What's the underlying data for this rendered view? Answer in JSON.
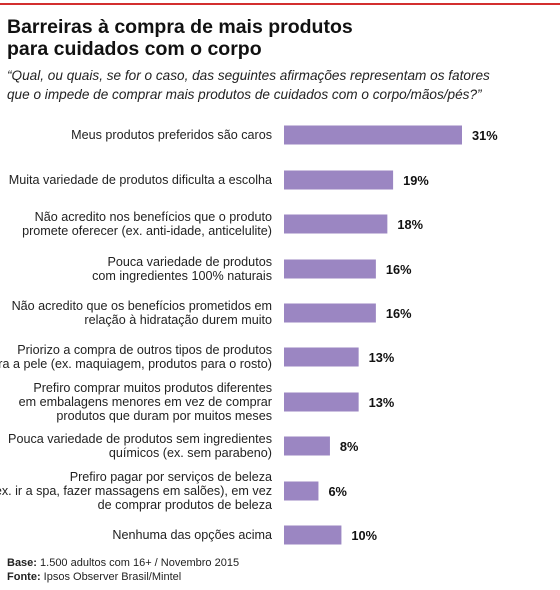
{
  "title_lines": [
    "Barreiras à compra de mais produtos",
    "para cuidados com o corpo"
  ],
  "subtitle_lines": [
    "“Qual, ou quais, se for o caso, das seguintes afirmações representam os fatores",
    "que o impede de comprar mais produtos de cuidados com o corpo/mãos/pés?”"
  ],
  "bar_color": "#9b86c2",
  "accent_color": "#d32f2f",
  "chart_data": {
    "type": "bar",
    "orientation": "horizontal",
    "unit": "%",
    "xlim": [
      0,
      31
    ],
    "categories": [
      [
        "Meus produtos preferidos são caros"
      ],
      [
        "Muita variedade de produtos dificulta a escolha"
      ],
      [
        "Não acredito nos benefícios que o produto",
        "promete oferecer (ex. anti-idade, anticelulite)"
      ],
      [
        "Pouca variedade de produtos",
        "com ingredientes 100% naturais"
      ],
      [
        "Não acredito que os benefícios prometidos em",
        "relação à hidratação durem muito"
      ],
      [
        "Priorizo a compra de outros tipos de produtos",
        "para a pele (ex. maquiagem, produtos para o rosto)"
      ],
      [
        "Prefiro comprar muitos produtos diferentes",
        "em embalagens menores em vez de comprar",
        "produtos que duram por muitos meses"
      ],
      [
        "Pouca variedade de produtos sem ingredientes",
        "químicos (ex. sem parabeno)"
      ],
      [
        "Prefiro pagar por serviços de beleza",
        "(ex. ir a spa, fazer massagens em salões), em vez",
        "de comprar produtos de beleza"
      ],
      [
        "Nenhuma das opções acima"
      ]
    ],
    "values": [
      31,
      19,
      18,
      16,
      16,
      13,
      13,
      8,
      6,
      10
    ],
    "value_labels": [
      "31%",
      "19%",
      "18%",
      "16%",
      "16%",
      "13%",
      "13%",
      "8%",
      "6%",
      "10%"
    ]
  },
  "footer": {
    "base_label": "Base:",
    "base_text": " 1.500 adultos com 16+ / Novembro 2015",
    "source_label": "Fonte:",
    "source_text": " Ipsos Observer Brasil/Mintel"
  }
}
